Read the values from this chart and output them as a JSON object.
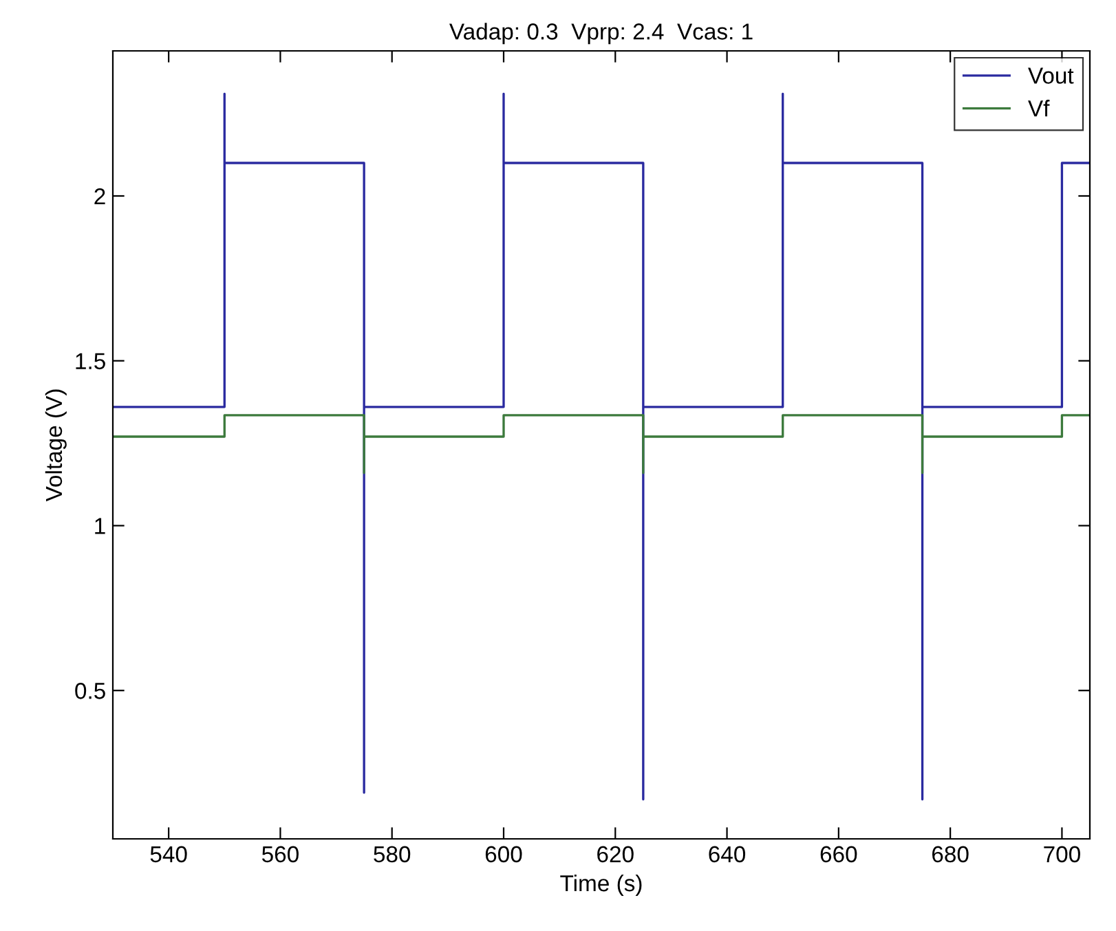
{
  "chart_data": {
    "type": "line",
    "title": "Vadap: 0.3  Vprp: 2.4  Vcas: 1",
    "xlabel": "Time (s)",
    "ylabel": "Voltage (V)",
    "xlim": [
      530,
      705
    ],
    "xticks": [
      540,
      560,
      580,
      600,
      620,
      640,
      660,
      680,
      700
    ],
    "ylim": [
      0.05,
      2.44
    ],
    "yticks": [
      0.5,
      1,
      1.5,
      2
    ],
    "grid": false,
    "legend": "top right",
    "marker": "none",
    "line_style": "solid",
    "series": [
      {
        "name": "Vout",
        "color": "#2a2aa0",
        "x": [
          530,
          550,
          550,
          550,
          575,
          575,
          575,
          600,
          600,
          600,
          625,
          625,
          625,
          650,
          650,
          650,
          675,
          675,
          675,
          700,
          700,
          705
        ],
        "values": [
          1.36,
          1.36,
          2.31,
          2.1,
          2.1,
          0.19,
          1.36,
          1.36,
          2.31,
          2.1,
          2.1,
          0.17,
          1.36,
          1.36,
          2.31,
          2.1,
          2.1,
          0.17,
          1.36,
          1.36,
          2.1,
          2.1
        ]
      },
      {
        "name": "Vf",
        "color": "#3c7a3c",
        "x": [
          530,
          550,
          550,
          575,
          575,
          575,
          600,
          600,
          625,
          625,
          625,
          650,
          650,
          675,
          675,
          675,
          700,
          700,
          705
        ],
        "values": [
          1.27,
          1.27,
          1.335,
          1.335,
          1.16,
          1.27,
          1.27,
          1.335,
          1.335,
          1.16,
          1.27,
          1.27,
          1.335,
          1.335,
          1.16,
          1.27,
          1.27,
          1.335,
          1.335
        ]
      }
    ]
  }
}
